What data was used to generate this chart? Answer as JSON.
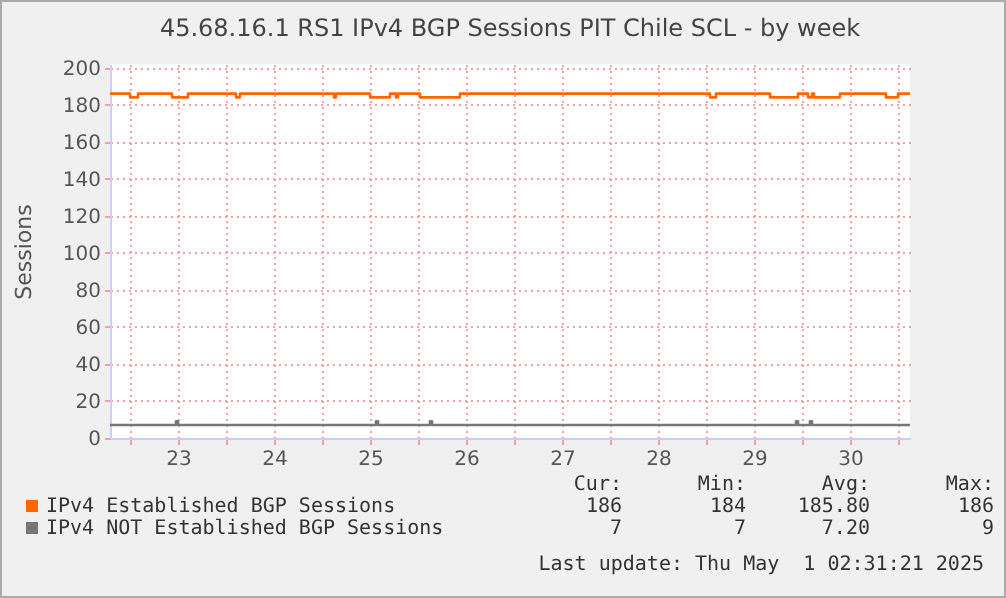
{
  "chart_data": {
    "type": "step",
    "title": "45.68.16.1 RS1 IPv4 BGP Sessions PIT Chile SCL - by week",
    "ylabel": "Sessions",
    "xlim": [
      "2025-04-22T19:00",
      "2025-05-01T03:00"
    ],
    "xticks": [
      {
        "value": "2025-04-23T00:00",
        "label": null
      },
      {
        "value": "2025-04-23T12:00",
        "label": "23"
      },
      {
        "value": "2025-04-24T00:00",
        "label": null
      },
      {
        "value": "2025-04-24T12:00",
        "label": "24"
      },
      {
        "value": "2025-04-25T00:00",
        "label": null
      },
      {
        "value": "2025-04-25T12:00",
        "label": "25"
      },
      {
        "value": "2025-04-26T00:00",
        "label": null
      },
      {
        "value": "2025-04-26T12:00",
        "label": "26"
      },
      {
        "value": "2025-04-27T00:00",
        "label": null
      },
      {
        "value": "2025-04-27T12:00",
        "label": "27"
      },
      {
        "value": "2025-04-28T00:00",
        "label": null
      },
      {
        "value": "2025-04-28T12:00",
        "label": "28"
      },
      {
        "value": "2025-04-29T00:00",
        "label": null
      },
      {
        "value": "2025-04-29T12:00",
        "label": "29"
      },
      {
        "value": "2025-04-30T00:00",
        "label": null
      },
      {
        "value": "2025-04-30T12:00",
        "label": "30"
      },
      {
        "value": "2025-05-01T00:00",
        "label": null
      }
    ],
    "ylim": [
      0,
      202
    ],
    "yticks": [
      0,
      20,
      40,
      60,
      80,
      100,
      120,
      140,
      160,
      180,
      200
    ],
    "grid": true,
    "legend": "bottom left",
    "series": [
      {
        "name": "IPv4 Established BGP Sessions",
        "color": "#ff6600",
        "x": [
          "2025-04-22T19:00",
          "2025-04-23T00:00",
          "2025-04-23T02:00",
          "2025-04-23T10:30",
          "2025-04-23T14:30",
          "2025-04-24T02:30",
          "2025-04-24T03:30",
          "2025-04-25T03:00",
          "2025-04-25T03:30",
          "2025-04-25T12:00",
          "2025-04-25T17:00",
          "2025-04-25T18:30",
          "2025-04-25T19:00",
          "2025-04-26T00:30",
          "2025-04-26T10:30",
          "2025-04-29T01:00",
          "2025-04-29T02:30",
          "2025-04-29T16:00",
          "2025-04-29T23:00",
          "2025-04-30T01:30",
          "2025-04-30T02:30",
          "2025-04-30T03:00",
          "2025-04-30T09:30",
          "2025-04-30T21:00",
          "2025-05-01T00:00",
          "2025-05-01T03:00"
        ],
        "values": [
          186,
          184,
          186,
          184,
          186,
          184,
          186,
          184,
          186,
          184,
          186,
          184,
          186,
          184,
          186,
          184,
          186,
          184,
          186,
          184,
          186,
          184,
          186,
          184,
          186,
          186
        ]
      },
      {
        "name": "IPv4 NOT Established BGP Sessions",
        "color": "#777777",
        "x": [
          "2025-04-22T19:00",
          "2025-04-23T11:30",
          "2025-04-23T12:00",
          "2025-04-25T13:30",
          "2025-04-25T14:00",
          "2025-04-26T03:00",
          "2025-04-26T03:30",
          "2025-04-29T22:30",
          "2025-04-29T23:00",
          "2025-04-30T02:00",
          "2025-04-30T02:30",
          "2025-05-01T03:00"
        ],
        "values": [
          7,
          9,
          7,
          9,
          7,
          9,
          7,
          9,
          7,
          9,
          7,
          7
        ]
      }
    ],
    "annotations": [
      "Cur:",
      "Min:",
      "Avg:",
      "Max:",
      "186",
      "184",
      "185.80",
      "186",
      "7",
      "7",
      "7.20",
      "9",
      "Last update: Thu May  1 02:31:21 2025"
    ]
  }
}
